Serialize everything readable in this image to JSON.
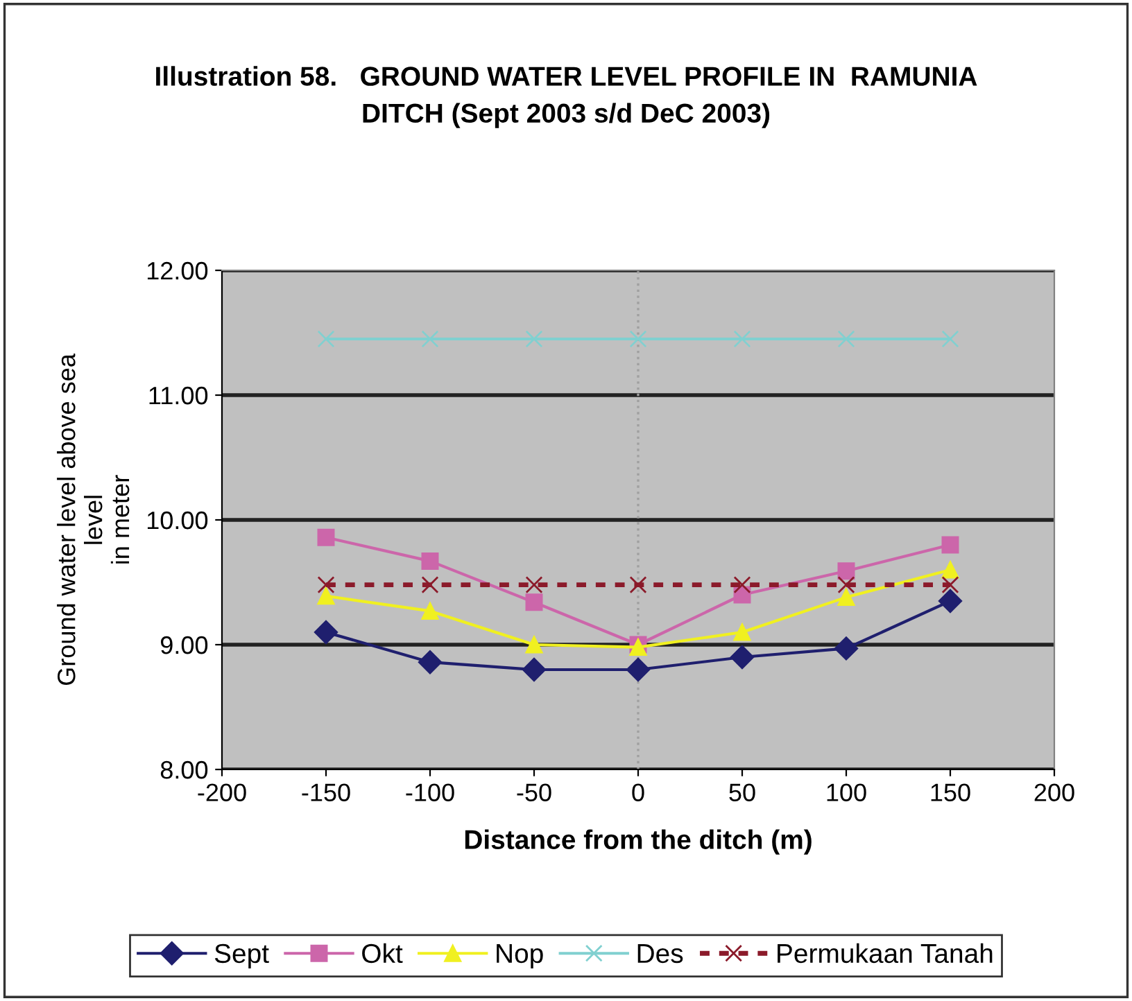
{
  "chart_data": {
    "type": "line",
    "title": "Illustration 58.   GROUND WATER LEVEL PROFILE IN  RAMUNIA\nDITCH (Sept 2003 s/d DeC 2003)",
    "xlabel": "Distance from the ditch (m)",
    "ylabel": "Ground water level above sea\nlevel\nin meter",
    "x": [
      -150,
      -100,
      -50,
      0,
      50,
      100,
      150
    ],
    "series": [
      {
        "name": "Sept",
        "color": "#1f1f6e",
        "marker": "diamond",
        "line_style": "solid",
        "values": [
          9.1,
          8.86,
          8.8,
          8.8,
          8.9,
          8.97,
          9.35
        ]
      },
      {
        "name": "Okt",
        "color": "#cc66aa",
        "marker": "square",
        "line_style": "solid",
        "values": [
          9.86,
          9.67,
          9.34,
          9.0,
          9.4,
          9.59,
          9.8
        ]
      },
      {
        "name": "Nop",
        "color": "#f0f020",
        "marker": "triangle",
        "line_style": "solid",
        "values": [
          9.39,
          9.27,
          9.0,
          8.98,
          9.1,
          9.38,
          9.6
        ]
      },
      {
        "name": "Des",
        "color": "#80d0d0",
        "marker": "cross",
        "line_style": "solid",
        "values": [
          11.45,
          11.45,
          11.45,
          11.45,
          11.45,
          11.45,
          11.45
        ]
      },
      {
        "name": "Permukaan Tanah",
        "color": "#8b1a2a",
        "marker": "cross",
        "line_style": "dashed",
        "values": [
          9.48,
          9.48,
          9.48,
          9.48,
          9.48,
          9.48,
          9.48
        ]
      }
    ],
    "xlim": [
      -200,
      200
    ],
    "xticks": [
      -200,
      -150,
      -100,
      -50,
      0,
      50,
      100,
      150,
      200
    ],
    "ylim": [
      8,
      12
    ],
    "yticks": [
      {
        "value": 8,
        "label": "8.00"
      },
      {
        "value": 9,
        "label": "9.00"
      },
      {
        "value": 10,
        "label": "10.00"
      },
      {
        "value": 11,
        "label": "11.00"
      },
      {
        "value": 12,
        "label": "12.00"
      }
    ],
    "ref_lines": [
      {
        "axis": "x",
        "value": 0,
        "label": null,
        "color": "#a0a0a0",
        "line_style": "dotted"
      }
    ],
    "grid": "y",
    "legend": "bottom"
  }
}
